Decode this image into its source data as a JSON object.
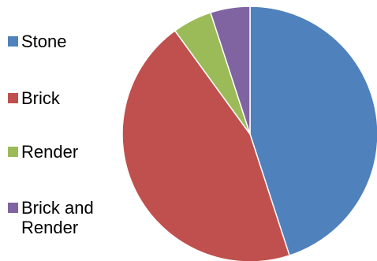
{
  "chart_data": {
    "type": "pie",
    "title": "",
    "legend_position": "left",
    "start_angle": "12 o'clock, clockwise",
    "slices": [
      {
        "label": "Stone",
        "value": 45,
        "color": "#4f81bd"
      },
      {
        "label": "Brick",
        "value": 45,
        "color": "#c0504d"
      },
      {
        "label": "Render",
        "value": 5,
        "color": "#9bbb59"
      },
      {
        "label": "Brick and\nRender",
        "value": 5,
        "color": "#8064a2"
      }
    ]
  }
}
